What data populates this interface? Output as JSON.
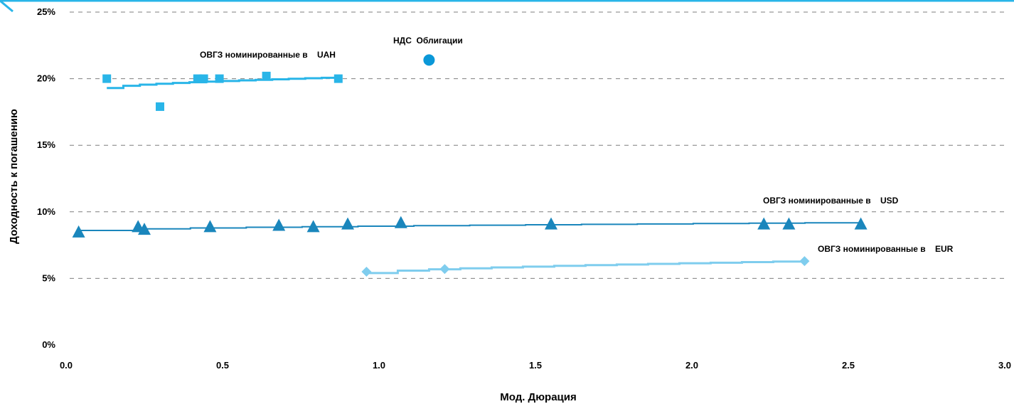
{
  "chart_data": {
    "type": "scatter",
    "title": "",
    "xlabel": "Мод. Дюрация",
    "ylabel": "Доходность к погашению",
    "xlim": [
      0,
      3
    ],
    "ylim": [
      0,
      0.25
    ],
    "x_ticks": [
      "0.0",
      "0.5",
      "1.0",
      "1.5",
      "2.0",
      "2.5",
      "3.0"
    ],
    "y_ticks": [
      "0%",
      "5%",
      "10%",
      "15%",
      "20%",
      "25%"
    ],
    "grid": "horizontal-dashed",
    "legend": "none",
    "series": [
      {
        "label": "ОВГЗ номинированные в    UAH",
        "marker": "square",
        "color": "#29b5e8",
        "points": [
          [
            0.13,
            0.2
          ],
          [
            0.3,
            0.179
          ],
          [
            0.42,
            0.2
          ],
          [
            0.44,
            0.2
          ],
          [
            0.49,
            0.2
          ],
          [
            0.64,
            0.202
          ],
          [
            0.87,
            0.2
          ]
        ],
        "trend": [
          [
            0.13,
            0.193
          ],
          [
            0.87,
            0.201
          ]
        ]
      },
      {
        "label": "НДС  Облигации",
        "marker": "circle",
        "color": "#0b98d8",
        "points": [
          [
            1.16,
            0.214
          ]
        ]
      },
      {
        "label": "ОВГЗ номинированные в    USD",
        "marker": "triangle",
        "color": "#1a86bc",
        "points": [
          [
            0.04,
            0.085
          ],
          [
            0.23,
            0.089
          ],
          [
            0.25,
            0.087
          ],
          [
            0.46,
            0.089
          ],
          [
            0.68,
            0.09
          ],
          [
            0.79,
            0.089
          ],
          [
            0.9,
            0.091
          ],
          [
            1.07,
            0.092
          ],
          [
            1.55,
            0.091
          ],
          [
            2.23,
            0.091
          ],
          [
            2.31,
            0.091
          ],
          [
            2.54,
            0.091
          ]
        ],
        "trend": [
          [
            0.04,
            0.086
          ],
          [
            2.54,
            0.092
          ]
        ]
      },
      {
        "label": "ОВГЗ номинированные в    EUR",
        "marker": "diamond",
        "color": "#7fcdee",
        "points": [
          [
            0.96,
            0.055
          ],
          [
            1.21,
            0.057
          ],
          [
            2.36,
            0.063
          ]
        ],
        "trend": [
          [
            0.96,
            0.054
          ],
          [
            2.36,
            0.063
          ]
        ]
      }
    ]
  }
}
